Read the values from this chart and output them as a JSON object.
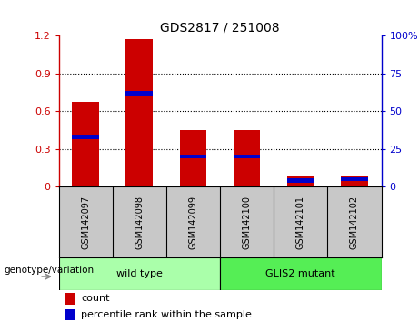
{
  "title": "GDS2817 / 251008",
  "samples": [
    "GSM142097",
    "GSM142098",
    "GSM142099",
    "GSM142100",
    "GSM142101",
    "GSM142102"
  ],
  "count_values": [
    0.67,
    1.17,
    0.45,
    0.45,
    0.08,
    0.09
  ],
  "percentile_values": [
    33,
    62,
    20,
    20,
    4,
    5
  ],
  "left_ylim": [
    0,
    1.2
  ],
  "right_ylim": [
    0,
    100
  ],
  "left_yticks": [
    0,
    0.3,
    0.6,
    0.9,
    1.2
  ],
  "right_yticks": [
    0,
    25,
    50,
    75,
    100
  ],
  "left_yticklabels": [
    "0",
    "0.3",
    "0.6",
    "0.9",
    "1.2"
  ],
  "right_yticklabels": [
    "0",
    "25",
    "50",
    "75",
    "100%"
  ],
  "count_color": "#cc0000",
  "percentile_color": "#0000cc",
  "tick_area_color": "#c8c8c8",
  "wild_type_color": "#aaffaa",
  "mutant_color": "#55ee55",
  "wild_type_label": "wild type",
  "mutant_label": "GLIS2 mutant",
  "genotype_label": "genotype/variation",
  "legend_count": "count",
  "legend_percentile": "percentile rank within the sample",
  "n_wild": 3,
  "n_mutant": 3
}
